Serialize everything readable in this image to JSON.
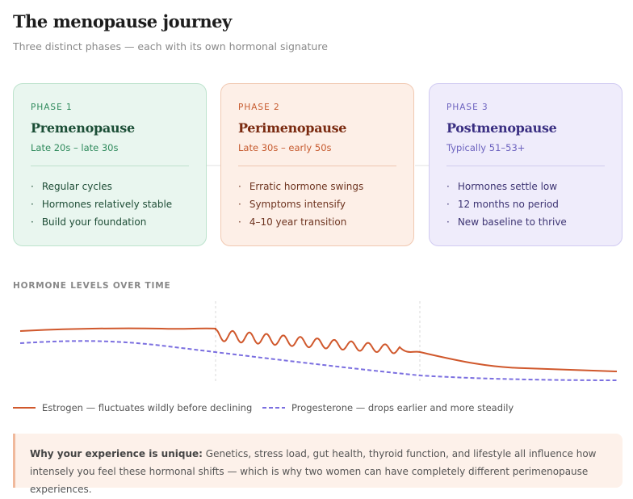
{
  "header": {
    "title": "The menopause journey",
    "subtitle": "Three distinct phases — each with its own hormonal signature"
  },
  "phases": [
    {
      "label": "PHASE 1",
      "name": "Premenopause",
      "range": "Late 20s – late 30s",
      "bullets": [
        "Regular cycles",
        "Hormones relatively stable",
        "Build your foundation"
      ]
    },
    {
      "label": "PHASE 2",
      "name": "Perimenopause",
      "range": "Late 30s – early 50s",
      "bullets": [
        "Erratic hormone swings",
        "Symptoms intensify",
        "4–10 year transition"
      ]
    },
    {
      "label": "PHASE 3",
      "name": "Postmenopause",
      "range": "Typically 51–53+",
      "bullets": [
        "Hormones settle low",
        "12 months no period",
        "New baseline to thrive"
      ]
    }
  ],
  "chart": {
    "label": "HORMONE LEVELS OVER TIME",
    "legend": [
      "Estrogen — fluctuates wildly before declining",
      "Progesterone — drops earlier and more steadily"
    ]
  },
  "callout": {
    "lead": "Why your experience is unique:",
    "text": "Genetics, stress load, gut health, thyroid function, and lifestyle all influence how intensely you feel these hormonal shifts — which is why two women can have completely different perimenopause experiences."
  }
}
